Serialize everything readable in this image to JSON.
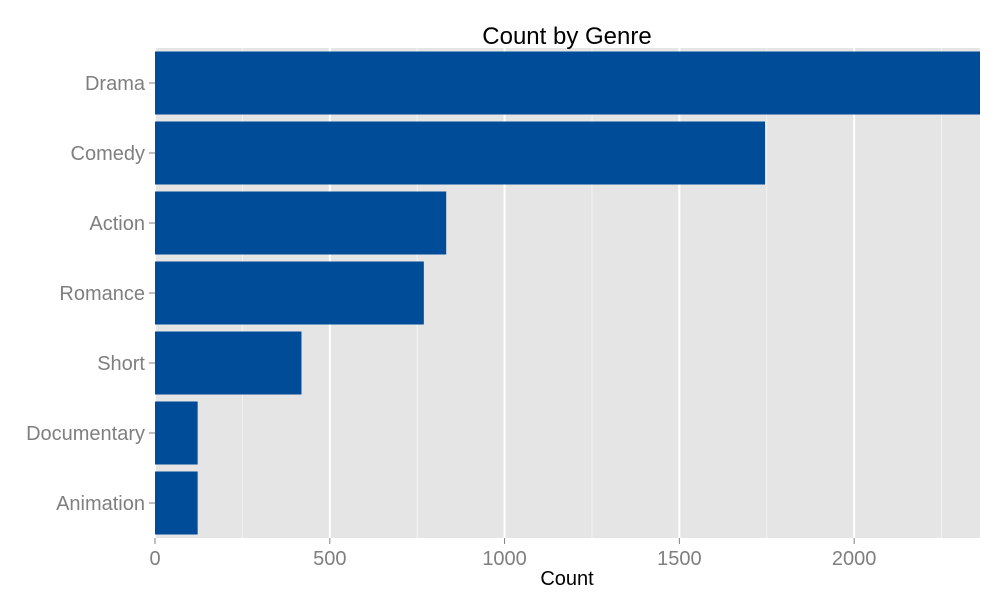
{
  "chart_data": {
    "type": "bar",
    "orientation": "horizontal",
    "title": "Count by Genre",
    "xlabel": "Count",
    "ylabel": "",
    "categories": [
      "Drama",
      "Comedy",
      "Action",
      "Romance",
      "Short",
      "Documentary",
      "Animation"
    ],
    "values": [
      2360,
      1745,
      833,
      769,
      419,
      122,
      122
    ],
    "xlim": [
      0,
      2360
    ],
    "xticks": [
      0,
      500,
      1000,
      1500,
      2000
    ],
    "xtick_labels": [
      "0",
      "500",
      "1000",
      "1500",
      "2000"
    ],
    "grid": true,
    "legend": "none",
    "colors": {
      "bar": "#004C99",
      "panel": "#E5E5E5",
      "grid_major": "#FFFFFF",
      "grid_minor": "#F2F2F2",
      "tick_label": "#7F7F7F"
    }
  }
}
